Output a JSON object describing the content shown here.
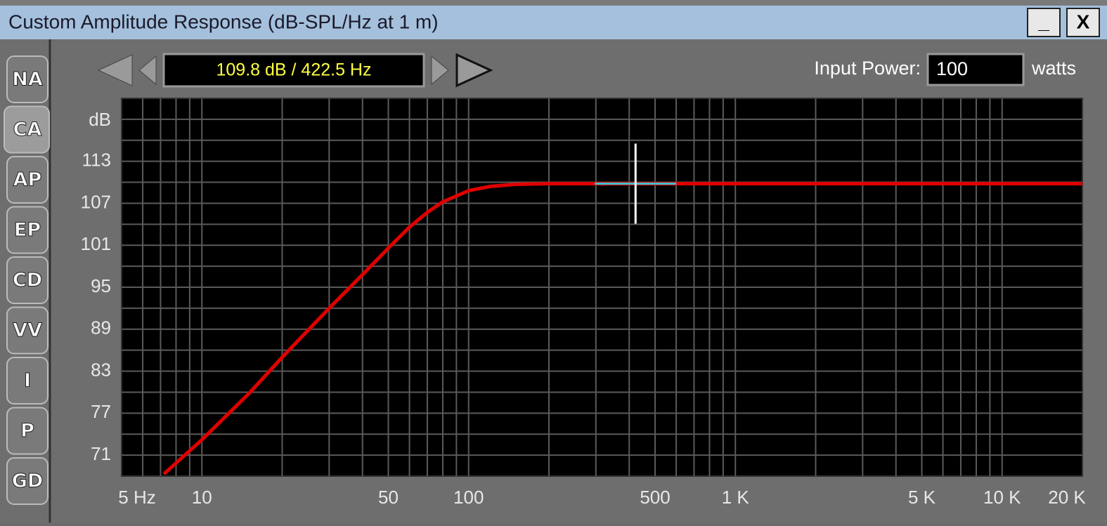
{
  "window": {
    "title": "Custom Amplitude Response (dB-SPL/Hz at 1 m)",
    "buttons": [
      "_",
      "X"
    ]
  },
  "tabs": [
    "NA",
    "CA",
    "AP",
    "EP",
    "CD",
    "VV",
    "I",
    "P",
    "GD"
  ],
  "selected_tab": "CA",
  "readout": "109.8 dB / 422.5 Hz",
  "input_power": {
    "label": "Input Power:",
    "value": "100",
    "unit": "watts"
  },
  "chart_data": {
    "type": "line",
    "y_label": "dB",
    "x_scale": "log",
    "grid": true,
    "xlim": [
      5,
      20000
    ],
    "ylim": [
      68,
      122
    ],
    "xticks": [
      {
        "value": 5,
        "label": "5 Hz"
      },
      10,
      50,
      100,
      500,
      {
        "value": 1000,
        "label": "1 K"
      },
      {
        "value": 5000,
        "label": "5 K"
      },
      {
        "value": 10000,
        "label": "10 K"
      },
      {
        "value": 20000,
        "label": "20 K"
      }
    ],
    "yticks": [
      71,
      77,
      83,
      89,
      95,
      101,
      107,
      113
    ],
    "x_grid": [
      6,
      7,
      8,
      9,
      10,
      20,
      30,
      40,
      50,
      60,
      70,
      80,
      90,
      100,
      200,
      300,
      400,
      500,
      600,
      700,
      800,
      900,
      1000,
      2000,
      3000,
      4000,
      5000,
      6000,
      7000,
      8000,
      9000,
      10000
    ],
    "y_grid": [
      71,
      74,
      77,
      80,
      83,
      86,
      89,
      92,
      95,
      98,
      101,
      104,
      107,
      110,
      113,
      116,
      119
    ],
    "series": [
      {
        "color": "#e00000",
        "x": [
          7.2,
          10,
          15,
          20,
          30,
          40,
          50,
          60,
          70,
          80,
          100,
          120,
          150,
          200,
          422.5,
          1000,
          5000,
          20000
        ],
        "values": [
          68.3,
          73.2,
          79.8,
          85,
          92,
          96.8,
          100.6,
          103.6,
          105.7,
          107.2,
          108.8,
          109.4,
          109.7,
          109.8,
          109.8,
          109.8,
          109.8,
          109.8
        ]
      }
    ],
    "cursor": {
      "x": 422.5,
      "y": 109.8
    }
  }
}
